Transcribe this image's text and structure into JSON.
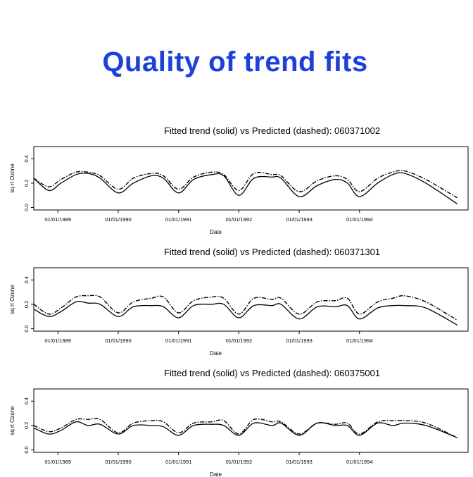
{
  "slide": {
    "title": "Quality of trend fits"
  },
  "chart_data": [
    {
      "type": "line",
      "title": "Fitted trend (solid) vs Predicted (dashed): 060371002",
      "xlabel": "Date",
      "ylabel": "sq rt Ozone",
      "x_tick_labels": [
        "01/01/1989",
        "01/01/1990",
        "01/01/1991",
        "01/01/1992",
        "01/01/1993",
        "01/01/1994"
      ],
      "y_ticks": [
        "0.0",
        "0.2",
        "0.4"
      ],
      "xlim": [
        1988.6,
        1995.8
      ],
      "ylim": [
        -0.02,
        0.5
      ],
      "grid": false,
      "x": [
        1988.6,
        1988.85,
        1989.05,
        1989.3,
        1989.5,
        1989.7,
        1990.0,
        1990.25,
        1990.55,
        1990.75,
        1991.0,
        1991.25,
        1991.55,
        1991.75,
        1992.0,
        1992.25,
        1992.55,
        1992.7,
        1993.0,
        1993.3,
        1993.6,
        1993.8,
        1994.0,
        1994.3,
        1994.55,
        1994.75,
        1995.1,
        1995.62
      ],
      "series": [
        {
          "name": "Fitted trend",
          "style": "solid",
          "values": [
            0.24,
            0.14,
            0.2,
            0.27,
            0.28,
            0.24,
            0.12,
            0.2,
            0.26,
            0.24,
            0.12,
            0.23,
            0.27,
            0.26,
            0.1,
            0.24,
            0.25,
            0.24,
            0.09,
            0.18,
            0.23,
            0.2,
            0.09,
            0.2,
            0.27,
            0.28,
            0.2,
            0.03
          ]
        },
        {
          "name": "Predicted",
          "style": "dashed",
          "values": [
            0.24,
            0.17,
            0.23,
            0.29,
            0.29,
            0.26,
            0.15,
            0.24,
            0.28,
            0.26,
            0.15,
            0.25,
            0.29,
            0.27,
            0.14,
            0.28,
            0.27,
            0.26,
            0.13,
            0.22,
            0.26,
            0.23,
            0.13,
            0.24,
            0.29,
            0.3,
            0.23,
            0.08
          ]
        }
      ]
    },
    {
      "type": "line",
      "title": "Fitted trend (solid) vs Predicted (dashed): 060371301",
      "xlabel": "Date",
      "ylabel": "sq rt Ozone",
      "x_tick_labels": [
        "01/01/1989",
        "01/01/1990",
        "01/01/1991",
        "01/01/1992",
        "01/01/1993",
        "01/01/1994"
      ],
      "y_ticks": [
        "0.0",
        "0.2",
        "0.4"
      ],
      "xlim": [
        1988.6,
        1995.8
      ],
      "ylim": [
        -0.02,
        0.5
      ],
      "grid": false,
      "x": [
        1988.6,
        1988.85,
        1989.05,
        1989.3,
        1989.5,
        1989.7,
        1990.0,
        1990.25,
        1990.55,
        1990.75,
        1991.0,
        1991.25,
        1991.55,
        1991.75,
        1992.0,
        1992.25,
        1992.55,
        1992.7,
        1993.0,
        1993.3,
        1993.6,
        1993.8,
        1994.0,
        1994.3,
        1994.55,
        1994.75,
        1995.1,
        1995.62
      ],
      "series": [
        {
          "name": "Fitted trend",
          "style": "solid",
          "values": [
            0.16,
            0.1,
            0.14,
            0.22,
            0.21,
            0.2,
            0.1,
            0.18,
            0.19,
            0.18,
            0.09,
            0.19,
            0.2,
            0.2,
            0.09,
            0.19,
            0.19,
            0.2,
            0.08,
            0.18,
            0.18,
            0.19,
            0.08,
            0.17,
            0.19,
            0.19,
            0.17,
            0.03
          ]
        },
        {
          "name": "Predicted",
          "style": "dashed",
          "values": [
            0.2,
            0.12,
            0.17,
            0.26,
            0.27,
            0.26,
            0.13,
            0.22,
            0.25,
            0.26,
            0.13,
            0.23,
            0.26,
            0.25,
            0.12,
            0.25,
            0.24,
            0.25,
            0.12,
            0.22,
            0.23,
            0.25,
            0.12,
            0.22,
            0.25,
            0.27,
            0.22,
            0.07
          ]
        }
      ]
    },
    {
      "type": "line",
      "title": "Fitted trend (solid) vs Predicted (dashed): 060375001",
      "xlabel": "Date",
      "ylabel": "sq rt Ozone",
      "x_tick_labels": [
        "01/01/1989",
        "01/01/1990",
        "01/01/1991",
        "01/01/1992",
        "01/01/1993",
        "01/01/1994"
      ],
      "y_ticks": [
        "0.0",
        "0.2",
        "0.4"
      ],
      "xlim": [
        1988.6,
        1995.8
      ],
      "ylim": [
        -0.02,
        0.5
      ],
      "grid": false,
      "x": [
        1988.6,
        1988.85,
        1989.05,
        1989.3,
        1989.5,
        1989.7,
        1990.0,
        1990.25,
        1990.55,
        1990.75,
        1991.0,
        1991.25,
        1991.55,
        1991.75,
        1992.0,
        1992.25,
        1992.55,
        1992.7,
        1993.0,
        1993.3,
        1993.6,
        1993.8,
        1994.0,
        1994.3,
        1994.55,
        1994.75,
        1995.1,
        1995.62
      ],
      "series": [
        {
          "name": "Fitted trend",
          "style": "solid",
          "values": [
            0.18,
            0.13,
            0.16,
            0.23,
            0.2,
            0.21,
            0.13,
            0.2,
            0.2,
            0.19,
            0.12,
            0.2,
            0.21,
            0.2,
            0.12,
            0.22,
            0.2,
            0.22,
            0.12,
            0.22,
            0.2,
            0.2,
            0.12,
            0.22,
            0.2,
            0.22,
            0.2,
            0.1
          ]
        },
        {
          "name": "Predicted",
          "style": "dashed",
          "values": [
            0.2,
            0.15,
            0.18,
            0.25,
            0.25,
            0.25,
            0.14,
            0.22,
            0.24,
            0.23,
            0.14,
            0.22,
            0.23,
            0.24,
            0.13,
            0.25,
            0.23,
            0.23,
            0.13,
            0.22,
            0.21,
            0.22,
            0.13,
            0.23,
            0.24,
            0.24,
            0.22,
            0.1
          ]
        }
      ]
    }
  ]
}
